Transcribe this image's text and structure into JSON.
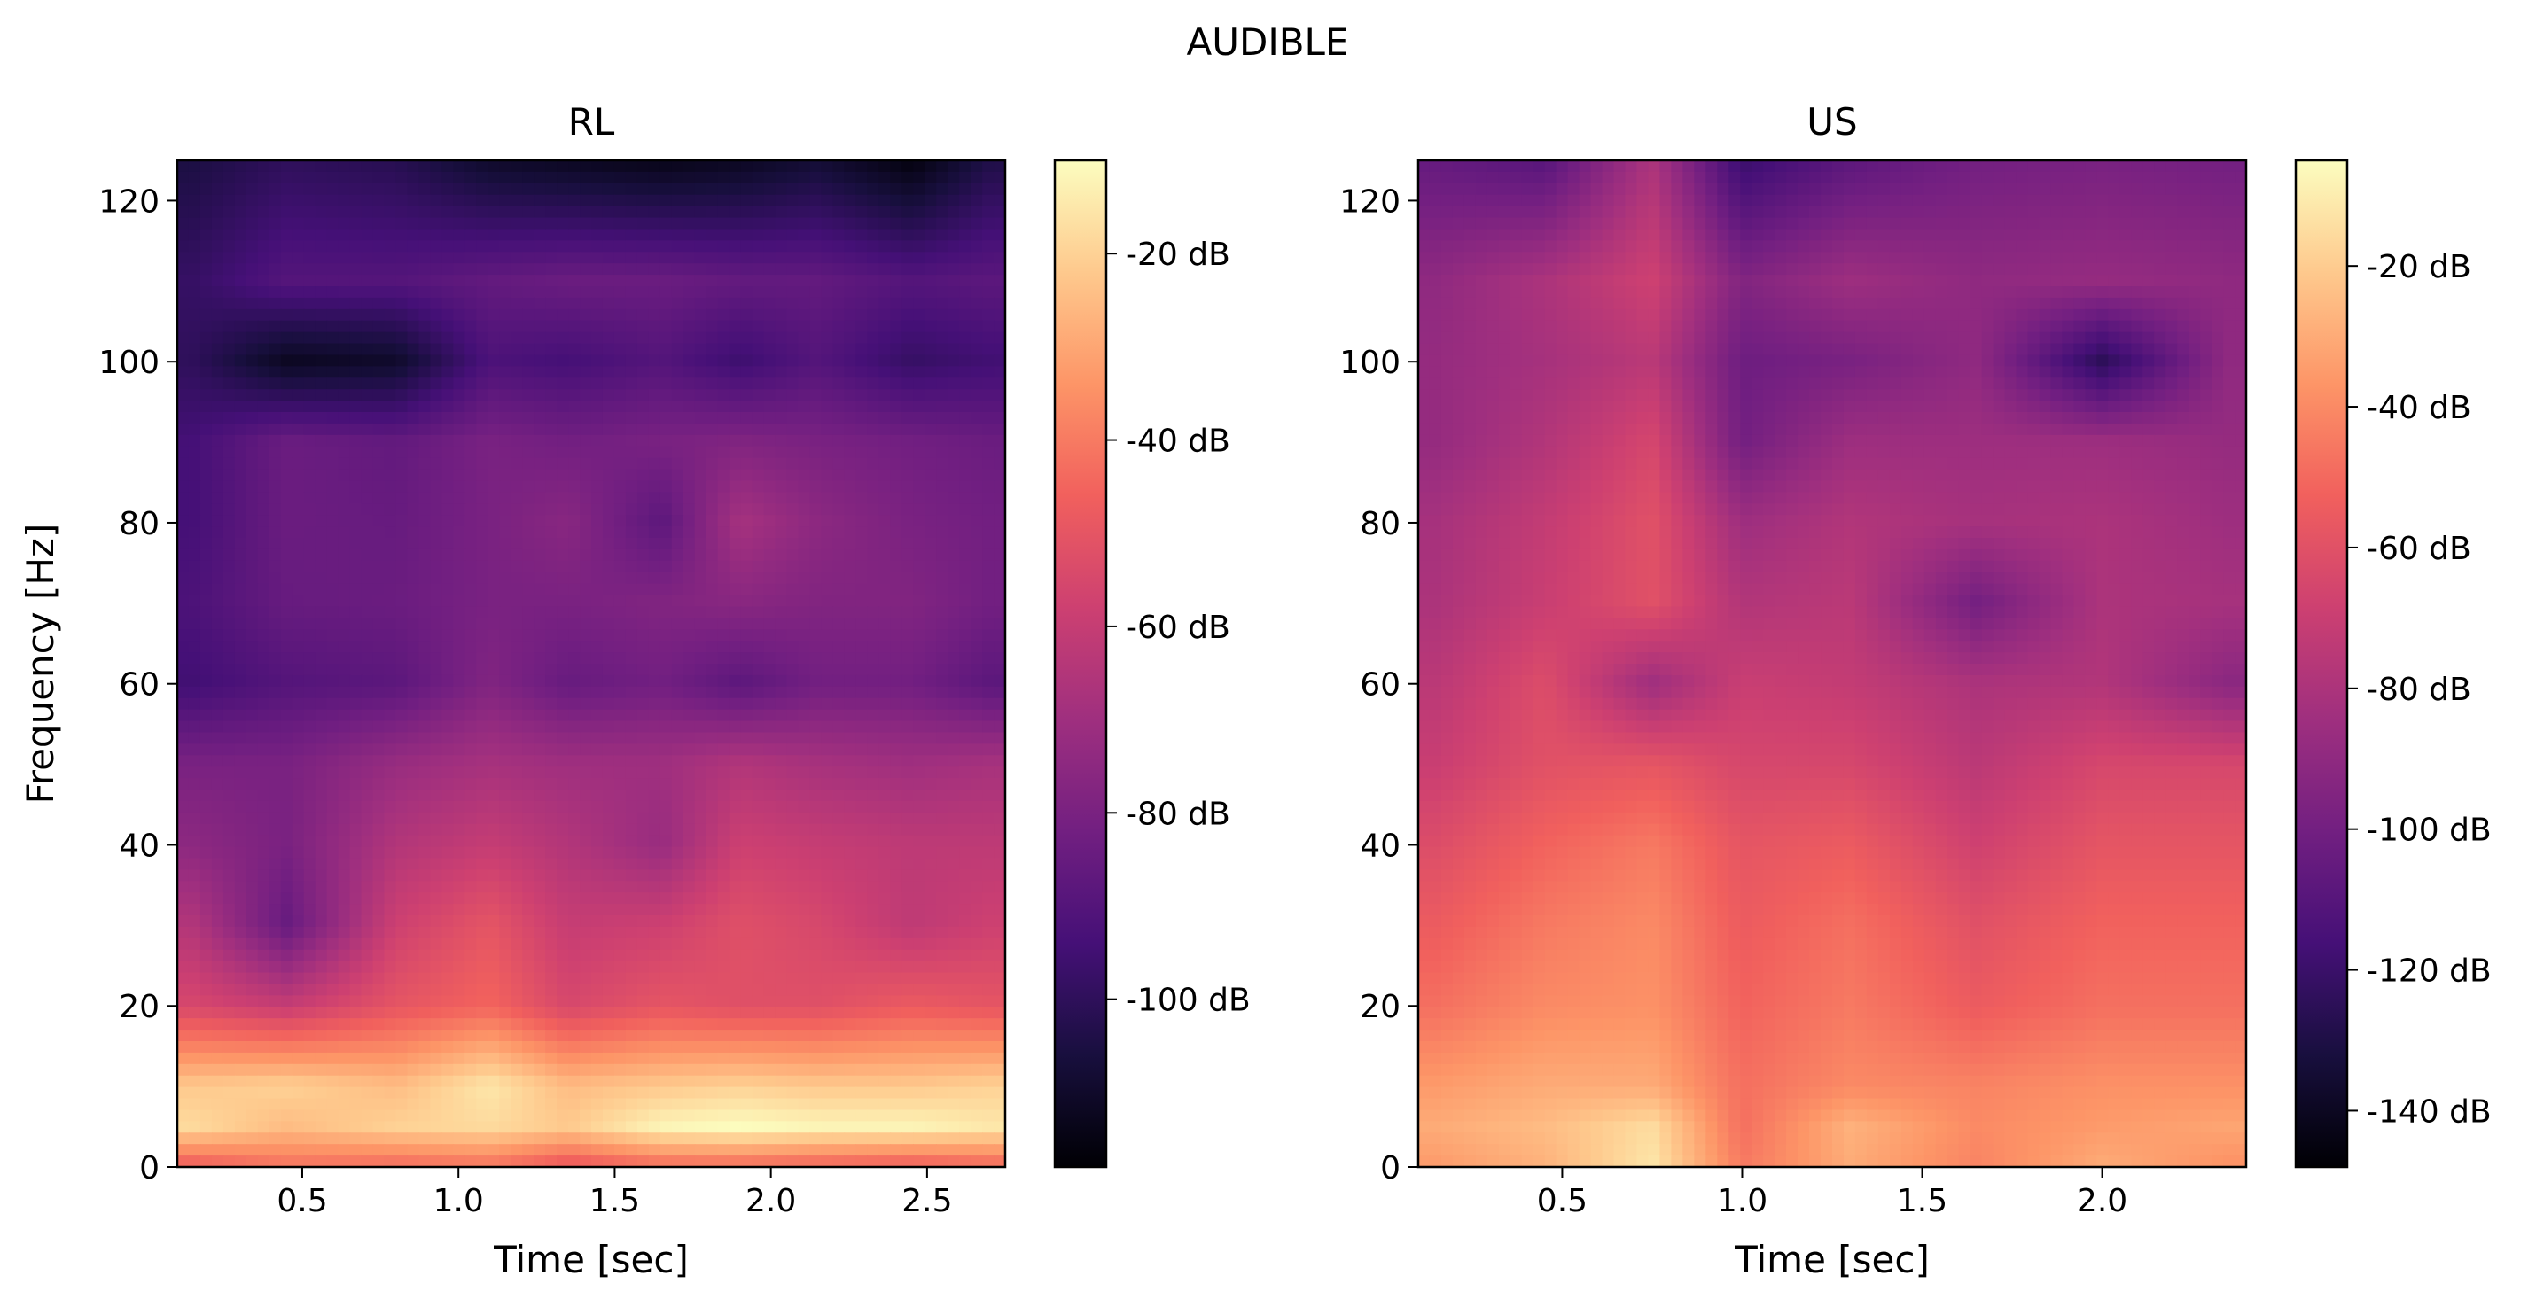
{
  "figure": {
    "suptitle": "AUDIBLE"
  },
  "colormap": {
    "name": "magma",
    "stops": [
      "#000004",
      "#180f3e",
      "#451077",
      "#721f81",
      "#9f2f7f",
      "#cd4071",
      "#f1605d",
      "#fd9567",
      "#fec98d",
      "#fcfdbf"
    ]
  },
  "chart_data": [
    {
      "type": "heatmap",
      "title": "RL",
      "xlabel": "Time [sec]",
      "ylabel": "Frequency [Hz]",
      "xlim": [
        0.1,
        2.75
      ],
      "ylim": [
        0,
        125
      ],
      "xticks": [
        "0.5",
        "1.0",
        "1.5",
        "2.0",
        "2.5"
      ],
      "xtick_values": [
        0.5,
        1.0,
        1.5,
        2.0,
        2.5
      ],
      "yticks": [
        "0",
        "20",
        "40",
        "60",
        "80",
        "100",
        "120"
      ],
      "ytick_values": [
        0,
        20,
        40,
        60,
        80,
        100,
        120
      ],
      "colorbar": {
        "range": [
          -118,
          -10
        ],
        "ticks": [
          "-20 dB",
          "-40 dB",
          "-60 dB",
          "-80 dB",
          "-100 dB"
        ],
        "tick_values": [
          -20,
          -40,
          -60,
          -80,
          -100
        ]
      },
      "x": [
        0.15,
        0.45,
        0.8,
        1.1,
        1.35,
        1.65,
        1.9,
        2.15,
        2.45,
        2.7
      ],
      "y": [
        0,
        5,
        10,
        20,
        30,
        40,
        50,
        60,
        70,
        80,
        90,
        100,
        110,
        125
      ],
      "z_db": [
        [
          -48,
          -42,
          -44,
          -42,
          -50,
          -44,
          -44,
          -46,
          -48,
          -45
        ],
        [
          -18,
          -25,
          -20,
          -18,
          -22,
          -12,
          -10,
          -12,
          -12,
          -15
        ],
        [
          -22,
          -20,
          -25,
          -15,
          -25,
          -22,
          -20,
          -22,
          -22,
          -20
        ],
        [
          -55,
          -60,
          -50,
          -45,
          -55,
          -50,
          -52,
          -52,
          -48,
          -50
        ],
        [
          -65,
          -85,
          -58,
          -50,
          -60,
          -58,
          -52,
          -55,
          -62,
          -58
        ],
        [
          -75,
          -80,
          -65,
          -60,
          -65,
          -72,
          -58,
          -60,
          -62,
          -62
        ],
        [
          -80,
          -80,
          -72,
          -68,
          -70,
          -70,
          -65,
          -68,
          -70,
          -68
        ],
        [
          -95,
          -90,
          -88,
          -78,
          -85,
          -82,
          -88,
          -82,
          -82,
          -88
        ],
        [
          -92,
          -85,
          -84,
          -80,
          -80,
          -78,
          -76,
          -78,
          -78,
          -82
        ],
        [
          -94,
          -84,
          -85,
          -80,
          -76,
          -88,
          -68,
          -75,
          -80,
          -82
        ],
        [
          -94,
          -84,
          -86,
          -80,
          -82,
          -80,
          -78,
          -80,
          -82,
          -84
        ],
        [
          -100,
          -112,
          -110,
          -92,
          -94,
          -90,
          -96,
          -90,
          -98,
          -95
        ],
        [
          -98,
          -90,
          -90,
          -86,
          -84,
          -84,
          -86,
          -86,
          -90,
          -88
        ],
        [
          -105,
          -100,
          -102,
          -110,
          -112,
          -114,
          -112,
          -108,
          -116,
          -104
        ]
      ]
    },
    {
      "type": "heatmap",
      "title": "US",
      "xlabel": "Time [sec]",
      "ylabel": "",
      "xlim": [
        0.1,
        2.4
      ],
      "ylim": [
        0,
        125
      ],
      "xticks": [
        "0.5",
        "1.0",
        "1.5",
        "2.0"
      ],
      "xtick_values": [
        0.5,
        1.0,
        1.5,
        2.0
      ],
      "yticks": [
        "0",
        "20",
        "40",
        "60",
        "80",
        "100",
        "120"
      ],
      "ytick_values": [
        0,
        20,
        40,
        60,
        80,
        100,
        120
      ],
      "colorbar": {
        "range": [
          -148,
          -5
        ],
        "ticks": [
          "-20 dB",
          "-40 dB",
          "-60 dB",
          "-80 dB",
          "-100 dB",
          "-120 dB",
          "-140 dB"
        ],
        "tick_values": [
          -20,
          -40,
          -60,
          -80,
          -100,
          -120,
          -140
        ]
      },
      "x": [
        0.15,
        0.45,
        0.75,
        1.0,
        1.3,
        1.65,
        2.0,
        2.35
      ],
      "y": [
        0,
        5,
        10,
        20,
        30,
        40,
        50,
        60,
        70,
        80,
        90,
        100,
        110,
        125
      ],
      "z_db": [
        [
          -35,
          -28,
          -12,
          -45,
          -30,
          -42,
          -30,
          -38
        ],
        [
          -30,
          -25,
          -15,
          -48,
          -28,
          -40,
          -35,
          -32
        ],
        [
          -35,
          -30,
          -30,
          -48,
          -40,
          -42,
          -38,
          -38
        ],
        [
          -48,
          -40,
          -38,
          -52,
          -45,
          -55,
          -48,
          -48
        ],
        [
          -55,
          -45,
          -40,
          -55,
          -48,
          -60,
          -52,
          -52
        ],
        [
          -62,
          -52,
          -45,
          -58,
          -55,
          -68,
          -58,
          -58
        ],
        [
          -70,
          -60,
          -58,
          -65,
          -65,
          -75,
          -65,
          -65
        ],
        [
          -75,
          -62,
          -85,
          -70,
          -72,
          -80,
          -78,
          -92
        ],
        [
          -80,
          -70,
          -60,
          -78,
          -75,
          -100,
          -80,
          -82
        ],
        [
          -82,
          -72,
          -60,
          -85,
          -78,
          -82,
          -80,
          -85
        ],
        [
          -88,
          -78,
          -65,
          -100,
          -85,
          -85,
          -85,
          -88
        ],
        [
          -88,
          -82,
          -75,
          -102,
          -98,
          -90,
          -125,
          -90
        ],
        [
          -90,
          -80,
          -68,
          -95,
          -85,
          -90,
          -88,
          -90
        ],
        [
          -105,
          -110,
          -80,
          -120,
          -108,
          -100,
          -98,
          -100
        ]
      ]
    }
  ]
}
